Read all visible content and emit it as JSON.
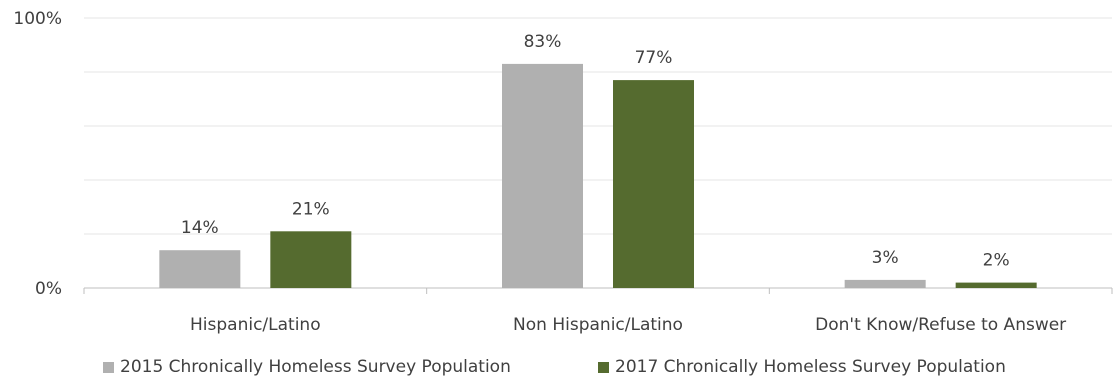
{
  "chart_data": {
    "type": "bar",
    "title": "",
    "xlabel": "",
    "ylabel": "",
    "ylim": [
      0,
      100
    ],
    "y_ticks": [
      {
        "value": 0,
        "label": "0%"
      },
      {
        "value": 100,
        "label": "100%"
      }
    ],
    "grid": true,
    "legend_position": "bottom",
    "categories": [
      "Hispanic/Latino",
      "Non Hispanic/Latino",
      "Don't Know/Refuse to Answer"
    ],
    "series": [
      {
        "name": "2015 Chronically Homeless Survey Population",
        "color": "#b0b0b0",
        "values": [
          14,
          83,
          3
        ],
        "labels": [
          "14%",
          "83%",
          "3%"
        ]
      },
      {
        "name": "2017 Chronically Homeless Survey Population",
        "color": "#556b2f",
        "values": [
          21,
          77,
          2
        ],
        "labels": [
          "21%",
          "77%",
          "2%"
        ]
      }
    ]
  }
}
